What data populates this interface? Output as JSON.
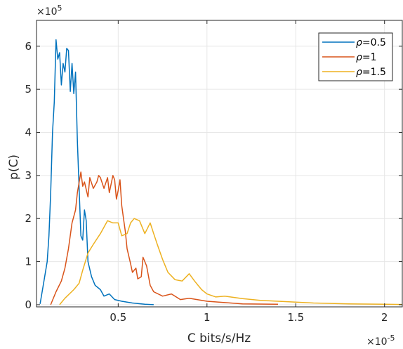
{
  "chart_data": {
    "type": "line",
    "title": "",
    "xlabel": "C bits/s/Hz",
    "ylabel": "p(C)",
    "x_exponent_label": "×10",
    "x_exponent": "-5",
    "y_exponent_label": "×10",
    "y_exponent": "5",
    "xlim": [
      0.04,
      2.1
    ],
    "ylim": [
      -0.05,
      6.6
    ],
    "x_ticks": [
      0.5,
      1,
      1.5,
      2
    ],
    "x_tick_labels": [
      "0.5",
      "1",
      "1.5",
      "2"
    ],
    "y_ticks": [
      0,
      1,
      2,
      3,
      4,
      5,
      6
    ],
    "y_tick_labels": [
      "0",
      "1",
      "2",
      "3",
      "4",
      "5",
      "6"
    ],
    "grid": true,
    "legend_position": "top-right",
    "series": [
      {
        "name": "ρ=0.5",
        "name_symbol": "ρ",
        "name_value": "=0.5",
        "color": "#0072BD",
        "points": [
          [
            0.06,
            0.02
          ],
          [
            0.08,
            0.5
          ],
          [
            0.1,
            1.0
          ],
          [
            0.11,
            1.6
          ],
          [
            0.12,
            2.6
          ],
          [
            0.13,
            4.0
          ],
          [
            0.14,
            4.7
          ],
          [
            0.15,
            6.15
          ],
          [
            0.16,
            5.7
          ],
          [
            0.17,
            5.85
          ],
          [
            0.18,
            5.1
          ],
          [
            0.19,
            5.6
          ],
          [
            0.2,
            5.4
          ],
          [
            0.21,
            5.95
          ],
          [
            0.22,
            5.9
          ],
          [
            0.23,
            4.95
          ],
          [
            0.24,
            5.6
          ],
          [
            0.25,
            4.9
          ],
          [
            0.26,
            5.4
          ],
          [
            0.27,
            3.8
          ],
          [
            0.28,
            2.7
          ],
          [
            0.29,
            1.6
          ],
          [
            0.3,
            1.5
          ],
          [
            0.31,
            2.2
          ],
          [
            0.32,
            1.95
          ],
          [
            0.33,
            1.0
          ],
          [
            0.35,
            0.65
          ],
          [
            0.37,
            0.45
          ],
          [
            0.4,
            0.35
          ],
          [
            0.42,
            0.2
          ],
          [
            0.45,
            0.25
          ],
          [
            0.48,
            0.12
          ],
          [
            0.52,
            0.08
          ],
          [
            0.58,
            0.04
          ],
          [
            0.65,
            0.01
          ],
          [
            0.7,
            0.0
          ]
        ]
      },
      {
        "name": "ρ=1",
        "name_symbol": "ρ",
        "name_value": "=1",
        "color": "#D95319",
        "points": [
          [
            0.12,
            0.0
          ],
          [
            0.15,
            0.3
          ],
          [
            0.18,
            0.55
          ],
          [
            0.2,
            0.85
          ],
          [
            0.22,
            1.3
          ],
          [
            0.24,
            1.9
          ],
          [
            0.26,
            2.2
          ],
          [
            0.27,
            2.6
          ],
          [
            0.29,
            3.08
          ],
          [
            0.3,
            2.75
          ],
          [
            0.31,
            2.85
          ],
          [
            0.33,
            2.5
          ],
          [
            0.34,
            2.95
          ],
          [
            0.36,
            2.7
          ],
          [
            0.38,
            2.85
          ],
          [
            0.39,
            3.0
          ],
          [
            0.4,
            2.95
          ],
          [
            0.42,
            2.7
          ],
          [
            0.44,
            2.95
          ],
          [
            0.45,
            2.6
          ],
          [
            0.47,
            3.0
          ],
          [
            0.48,
            2.9
          ],
          [
            0.49,
            2.45
          ],
          [
            0.5,
            2.65
          ],
          [
            0.51,
            2.9
          ],
          [
            0.52,
            2.3
          ],
          [
            0.53,
            2.0
          ],
          [
            0.54,
            1.7
          ],
          [
            0.55,
            1.3
          ],
          [
            0.57,
            0.95
          ],
          [
            0.58,
            0.75
          ],
          [
            0.6,
            0.85
          ],
          [
            0.61,
            0.6
          ],
          [
            0.63,
            0.65
          ],
          [
            0.64,
            1.1
          ],
          [
            0.66,
            0.9
          ],
          [
            0.68,
            0.45
          ],
          [
            0.7,
            0.3
          ],
          [
            0.75,
            0.2
          ],
          [
            0.8,
            0.25
          ],
          [
            0.85,
            0.12
          ],
          [
            0.9,
            0.15
          ],
          [
            1.0,
            0.08
          ],
          [
            1.1,
            0.05
          ],
          [
            1.2,
            0.02
          ],
          [
            1.4,
            0.01
          ]
        ]
      },
      {
        "name": "ρ=1.5",
        "name_symbol": "ρ",
        "name_value": "=1.5",
        "color": "#EDB120",
        "points": [
          [
            0.17,
            0.0
          ],
          [
            0.2,
            0.15
          ],
          [
            0.25,
            0.35
          ],
          [
            0.28,
            0.5
          ],
          [
            0.3,
            0.8
          ],
          [
            0.33,
            1.2
          ],
          [
            0.36,
            1.4
          ],
          [
            0.4,
            1.65
          ],
          [
            0.44,
            1.95
          ],
          [
            0.47,
            1.9
          ],
          [
            0.5,
            1.9
          ],
          [
            0.52,
            1.6
          ],
          [
            0.55,
            1.65
          ],
          [
            0.57,
            1.9
          ],
          [
            0.59,
            2.0
          ],
          [
            0.62,
            1.95
          ],
          [
            0.65,
            1.65
          ],
          [
            0.68,
            1.9
          ],
          [
            0.7,
            1.65
          ],
          [
            0.72,
            1.4
          ],
          [
            0.75,
            1.05
          ],
          [
            0.78,
            0.75
          ],
          [
            0.82,
            0.58
          ],
          [
            0.86,
            0.55
          ],
          [
            0.9,
            0.72
          ],
          [
            0.93,
            0.55
          ],
          [
            0.97,
            0.35
          ],
          [
            1.0,
            0.25
          ],
          [
            1.05,
            0.18
          ],
          [
            1.1,
            0.2
          ],
          [
            1.2,
            0.14
          ],
          [
            1.3,
            0.1
          ],
          [
            1.4,
            0.08
          ],
          [
            1.5,
            0.06
          ],
          [
            1.6,
            0.04
          ],
          [
            1.7,
            0.03
          ],
          [
            1.8,
            0.02
          ],
          [
            1.9,
            0.015
          ],
          [
            2.0,
            0.01
          ],
          [
            2.1,
            0.005
          ]
        ]
      }
    ]
  },
  "colors": {
    "axes": "#262626",
    "grid": "#e6e6e6",
    "background": "#ffffff"
  }
}
